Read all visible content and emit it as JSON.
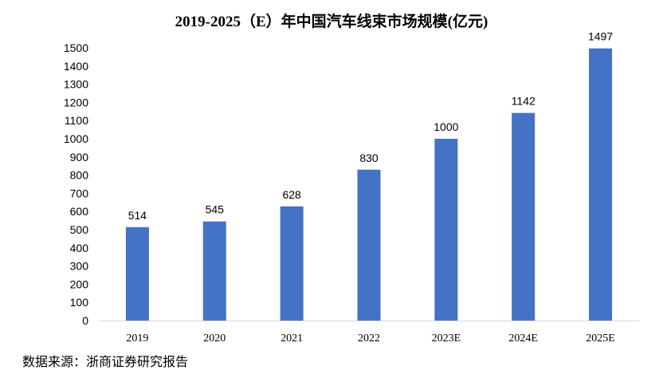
{
  "chart_data": {
    "type": "bar",
    "title": "2019-2025（E）年中国汽车线束市场规模(亿元)",
    "categories": [
      "2019",
      "2020",
      "2021",
      "2022",
      "2023E",
      "2024E",
      "2025E"
    ],
    "values": [
      514,
      545,
      628,
      830,
      1000,
      1142,
      1497
    ],
    "data_labels": [
      "514",
      "545",
      "628",
      "830",
      "1000",
      "1142",
      "1497"
    ],
    "y_ticks": [
      0,
      100,
      200,
      300,
      400,
      500,
      600,
      700,
      800,
      900,
      1000,
      1100,
      1200,
      1300,
      1400,
      1500
    ],
    "ylim": [
      0,
      1500
    ],
    "xlabel": "",
    "ylabel": "",
    "grid": false,
    "legend": "none",
    "bar_color": "#4472C4",
    "axis_color": "#D9D9D9"
  },
  "source_note": "数据来源：浙商证券研究报告"
}
